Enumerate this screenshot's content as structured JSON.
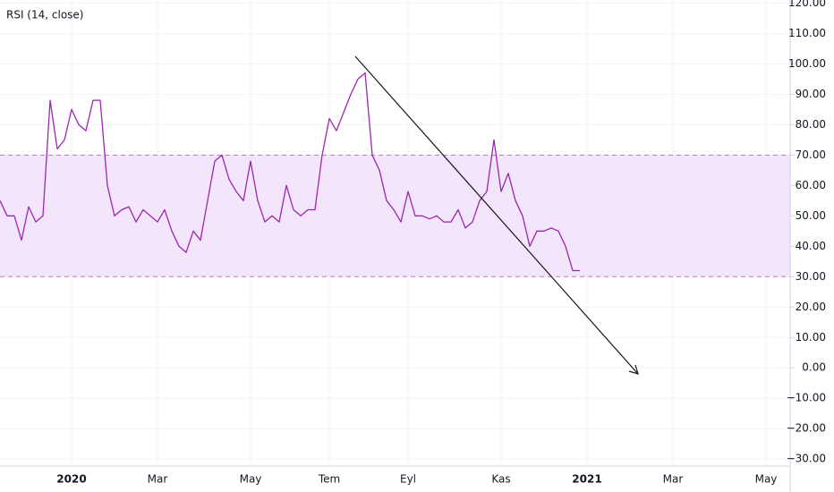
{
  "chart_data": {
    "type": "line",
    "title": "RSI (14, close)",
    "categories": [
      null,
      null,
      null,
      null,
      null,
      null,
      null,
      null,
      null,
      null,
      "2020",
      null,
      null,
      null,
      null,
      null,
      null,
      null,
      null,
      null,
      null,
      null,
      "Mar",
      null,
      null,
      null,
      null,
      null,
      null,
      null,
      null,
      null,
      null,
      null,
      null,
      "May",
      null,
      null,
      null,
      null,
      null,
      null,
      null,
      null,
      null,
      null,
      "Tem",
      null,
      null,
      null,
      null,
      null,
      null,
      null,
      null,
      null,
      null,
      "Eyl",
      null,
      null,
      null,
      null,
      null,
      null,
      null,
      null,
      null,
      null,
      null,
      null,
      "Kas",
      null,
      null,
      null,
      null,
      null,
      null,
      null,
      null,
      null,
      null,
      null,
      "2021",
      null,
      null,
      null,
      null,
      null,
      null,
      null,
      null,
      null,
      null,
      null,
      "Mar",
      null,
      null,
      null,
      null,
      null,
      null,
      null,
      null,
      null,
      null,
      null,
      null,
      "May",
      null,
      null,
      null
    ],
    "series": [
      {
        "name": "RSI",
        "color": "#9c27b0",
        "values": [
          55,
          50,
          50,
          42,
          53,
          48,
          50,
          88,
          72,
          75,
          85,
          80,
          78,
          88,
          88,
          60,
          50,
          52,
          53,
          48,
          52,
          50,
          48,
          52,
          45,
          40,
          38,
          45,
          42,
          55,
          68,
          70,
          62,
          58,
          55,
          68,
          55,
          48,
          50,
          48,
          60,
          52,
          50,
          52,
          52,
          70,
          82,
          78,
          84,
          90,
          95,
          97,
          70,
          65,
          55,
          52,
          48,
          58,
          50,
          50,
          49,
          50,
          48,
          48,
          52,
          46,
          48,
          55,
          58,
          75,
          58,
          64,
          55,
          50,
          40,
          45,
          45,
          46,
          45,
          40,
          32,
          32,
          null,
          null,
          null,
          null,
          null,
          null,
          null,
          null,
          null,
          null,
          null,
          null,
          null,
          null,
          null,
          null,
          null,
          null,
          null,
          null,
          null,
          null,
          null,
          null,
          null,
          null,
          null,
          null,
          null
        ]
      }
    ],
    "ylim": [
      -32,
      121
    ],
    "yticks": [
      {
        "value": 120,
        "label": "120.00"
      },
      {
        "value": 110,
        "label": "110.00"
      },
      {
        "value": 100,
        "label": "100.00"
      },
      {
        "value": 90,
        "label": "90.00"
      },
      {
        "value": 80,
        "label": "80.00"
      },
      {
        "value": 70,
        "label": "70.00"
      },
      {
        "value": 60,
        "label": "60.00"
      },
      {
        "value": 50,
        "label": "50.00"
      },
      {
        "value": 40,
        "label": "40.00"
      },
      {
        "value": 30,
        "label": "30.00"
      },
      {
        "value": 20,
        "label": "20.00"
      },
      {
        "value": 10,
        "label": "10.00"
      },
      {
        "value": 0,
        "label": "0.00"
      },
      {
        "value": -10,
        "label": "−10.00"
      },
      {
        "value": -20,
        "label": "−20.00"
      },
      {
        "value": -30,
        "label": "−30.00"
      }
    ],
    "band": [
      30,
      70
    ],
    "band_color": "#f3e5fb",
    "grid": true
  }
}
